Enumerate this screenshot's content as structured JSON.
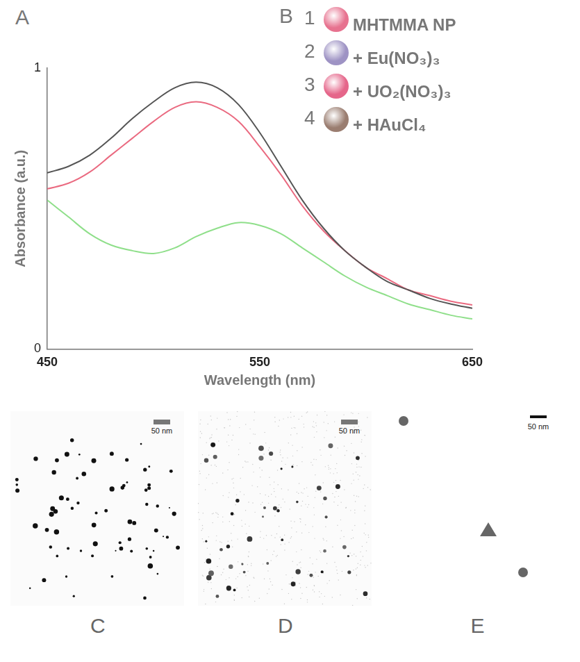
{
  "chart_data": {
    "panel": "A",
    "type": "line",
    "xlabel": "Wavelength (nm)",
    "ylabel": "Absorbance (a.u.)",
    "x": [
      450,
      460,
      470,
      480,
      490,
      500,
      510,
      520,
      530,
      540,
      550,
      560,
      570,
      580,
      590,
      600,
      610,
      620,
      630,
      640,
      650
    ],
    "series": [
      {
        "color": "#555555",
        "values": [
          0.627,
          0.65,
          0.69,
          0.75,
          0.82,
          0.88,
          0.93,
          0.95,
          0.93,
          0.87,
          0.77,
          0.65,
          0.53,
          0.43,
          0.35,
          0.29,
          0.24,
          0.21,
          0.18,
          0.16,
          0.145
        ]
      },
      {
        "color": "#ea6a80",
        "values": [
          0.57,
          0.59,
          0.63,
          0.69,
          0.75,
          0.81,
          0.86,
          0.88,
          0.86,
          0.81,
          0.72,
          0.62,
          0.51,
          0.42,
          0.35,
          0.29,
          0.25,
          0.21,
          0.19,
          0.17,
          0.157
        ]
      },
      {
        "color": "#8fdf8a",
        "values": [
          0.53,
          0.47,
          0.41,
          0.37,
          0.35,
          0.34,
          0.36,
          0.4,
          0.43,
          0.45,
          0.44,
          0.41,
          0.36,
          0.31,
          0.26,
          0.22,
          0.19,
          0.16,
          0.14,
          0.12,
          0.107
        ]
      }
    ],
    "xlim": [
      450,
      650
    ],
    "xticks": [
      450,
      550,
      650
    ],
    "ylim": [
      0,
      1
    ],
    "yticks": [
      0,
      1
    ],
    "grid": false
  },
  "panel_b": {
    "panel": "B",
    "items": [
      {
        "number": 1,
        "color": "#e7728f",
        "label": "MHTMMA NP"
      },
      {
        "number": 2,
        "color": "#9e93c4",
        "label": "+ Eu(NO₃)₃"
      },
      {
        "number": 3,
        "color": "#e5668a",
        "label": "+ UO₂(NO₃)₃"
      },
      {
        "number": 4,
        "color": "#9a7d70",
        "label": "+ HAuCl₄"
      }
    ]
  },
  "images": [
    {
      "panel": "C",
      "scale_bar": "50 nm"
    },
    {
      "panel": "D",
      "scale_bar": "50 nm"
    },
    {
      "panel": "E",
      "scale_bar": "50 nm"
    }
  ]
}
